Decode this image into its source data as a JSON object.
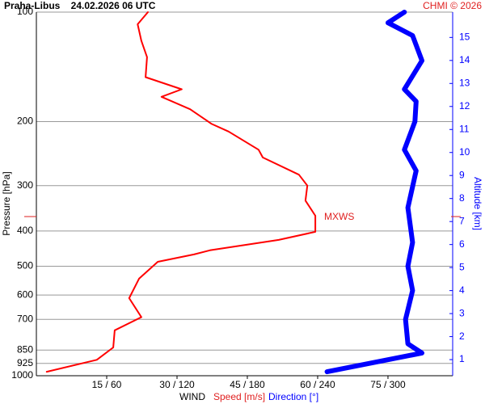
{
  "chart_data": {
    "type": "line",
    "title": "Praha-Libus    24.02.2026 06 UTC",
    "credit": "CHMI © 2026",
    "y_label": "Pressure [hPa]",
    "y2_label": "Altitude [km]",
    "x_label": "WIND",
    "x_label_speed": "Speed [m/s]",
    "x_label_direction": "Direction [°]",
    "ylog": true,
    "ylim": [
      1000,
      100
    ],
    "yticks": [
      100,
      200,
      300,
      400,
      500,
      600,
      700,
      850,
      925,
      1000
    ],
    "y2lim": [
      0.3,
      16.1
    ],
    "y2ticks": [
      1,
      2,
      3,
      4,
      5,
      6,
      7,
      8,
      9,
      10,
      11,
      12,
      13,
      14,
      15
    ],
    "y2color": "#0000ff",
    "xlim": [
      0,
      88.8
    ],
    "x2lim": [
      0,
      355.2
    ],
    "xticks": [
      {
        "value": 15,
        "label": "15 / 60"
      },
      {
        "value": 30,
        "label": "30 / 120"
      },
      {
        "value": 45,
        "label": "45 / 180"
      },
      {
        "value": 60,
        "label": "60 / 240"
      },
      {
        "value": 75,
        "label": "75 / 300"
      }
    ],
    "grid": true,
    "annotation": {
      "text": "MXWS",
      "pressure": 365,
      "color": "#e02020"
    },
    "series": [
      {
        "name": "Speed [m/s]",
        "color": "#ff0000",
        "width": 2,
        "axis": "x",
        "pressure": [
          100,
          108,
          120,
          133,
          151,
          163,
          171,
          185,
          203,
          213,
          239,
          251,
          280,
          300,
          330,
          363,
          402,
          423,
          452,
          464,
          486,
          541,
          612,
          690,
          750,
          836,
          904,
          975
        ],
        "values": [
          23.8,
          21.6,
          22.4,
          23.6,
          23.3,
          31,
          26.7,
          32.8,
          37.4,
          41,
          47.4,
          48.3,
          56,
          57.8,
          57.4,
          59.5,
          59.5,
          51.7,
          37,
          33.6,
          25.9,
          21.9,
          19.8,
          22.4,
          16.7,
          16.4,
          12.9,
          2.2
        ]
      },
      {
        "name": "Direction [°]",
        "color": "#0000ff",
        "width": 6,
        "axis": "x2",
        "pressure": [
          100,
          107,
          116,
          136,
          163,
          176,
          200,
          239,
          273,
          345,
          430,
          500,
          583,
          700,
          817,
          866,
          913,
          975
        ],
        "values": [
          314,
          300,
          321,
          329,
          314,
          324,
          323,
          314,
          324,
          317,
          321,
          317,
          321,
          315,
          317,
          329,
          293,
          248
        ]
      }
    ]
  }
}
